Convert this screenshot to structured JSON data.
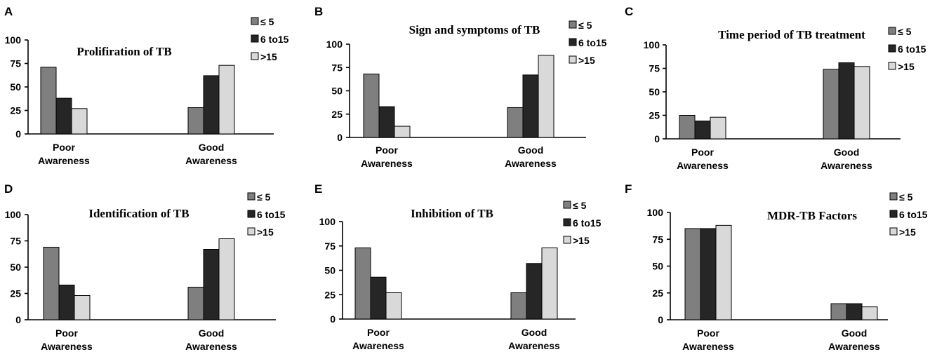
{
  "colors": {
    "le5": "#7f7f7f",
    "6to15": "#262626",
    "gt15": "#d9d9d9"
  },
  "chart_data": [
    {
      "panel": "A",
      "type": "bar",
      "title": "Prolifiration of TB",
      "categories": [
        [
          "Poor",
          "Awareness"
        ],
        [
          "Good",
          "Awareness"
        ]
      ],
      "series": [
        {
          "name": "≤ 5",
          "values": [
            71,
            28
          ]
        },
        {
          "name": "6 to15",
          "values": [
            38,
            62
          ]
        },
        {
          "name": ">15",
          "values": [
            27,
            73
          ]
        }
      ],
      "yticks": [
        "0",
        "25",
        "50",
        "75",
        "100"
      ],
      "ylim": [
        0,
        100
      ]
    },
    {
      "panel": "B",
      "type": "bar",
      "title": "Sign and symptoms of TB",
      "categories": [
        [
          "Poor",
          "Awareness"
        ],
        [
          "Good",
          "Awareness"
        ]
      ],
      "series": [
        {
          "name": "≤ 5",
          "values": [
            68,
            32
          ]
        },
        {
          "name": "6 to15",
          "values": [
            33,
            67
          ]
        },
        {
          "name": ">15",
          "values": [
            12,
            88
          ]
        }
      ],
      "yticks": [
        "0",
        "25",
        "50",
        "75",
        "100"
      ],
      "ylim": [
        0,
        100
      ]
    },
    {
      "panel": "C",
      "type": "bar",
      "title": "Time period of TB treatment",
      "categories": [
        [
          "Poor",
          "Awareness"
        ],
        [
          "Good",
          "Awareness"
        ]
      ],
      "series": [
        {
          "name": "≤ 5",
          "values": [
            25,
            74
          ]
        },
        {
          "name": "6 to15",
          "values": [
            19,
            81
          ]
        },
        {
          "name": ">15",
          "values": [
            23,
            77
          ]
        }
      ],
      "yticks": [
        "0",
        "25",
        "50",
        "75",
        "100"
      ],
      "ylim": [
        0,
        100
      ]
    },
    {
      "panel": "D",
      "type": "bar",
      "title": "Identification of TB",
      "categories": [
        [
          "Poor",
          "Awareness"
        ],
        [
          "Good",
          "Awareness"
        ]
      ],
      "series": [
        {
          "name": "≤ 5",
          "values": [
            69,
            31
          ]
        },
        {
          "name": "6 to15",
          "values": [
            33,
            67
          ]
        },
        {
          "name": ">15",
          "values": [
            23,
            77
          ]
        }
      ],
      "yticks": [
        "0",
        "25",
        "50",
        "75",
        "100"
      ],
      "ylim": [
        0,
        100
      ]
    },
    {
      "panel": "E",
      "type": "bar",
      "title": "Inhibition of TB",
      "categories": [
        [
          "Poor",
          "Awareness"
        ],
        [
          "Good",
          "Awareness"
        ]
      ],
      "series": [
        {
          "name": "≤ 5",
          "values": [
            73,
            27
          ]
        },
        {
          "name": "6 to15",
          "values": [
            43,
            57
          ]
        },
        {
          "name": ">15",
          "values": [
            27,
            73
          ]
        }
      ],
      "yticks": [
        "0",
        "25",
        "50",
        "75",
        "100"
      ],
      "ylim": [
        0,
        100
      ]
    },
    {
      "panel": "F",
      "type": "bar",
      "title": "MDR-TB Factors",
      "categories": [
        [
          "Poor",
          "Awareness"
        ],
        [
          "Good",
          "Awareness"
        ]
      ],
      "series": [
        {
          "name": "≤ 5",
          "values": [
            85,
            15
          ]
        },
        {
          "name": "6 to15",
          "values": [
            85,
            15
          ]
        },
        {
          "name": ">15",
          "values": [
            88,
            12
          ]
        }
      ],
      "yticks": [
        "0",
        "25",
        "50",
        "75",
        "100"
      ],
      "ylim": [
        0,
        100
      ]
    }
  ]
}
